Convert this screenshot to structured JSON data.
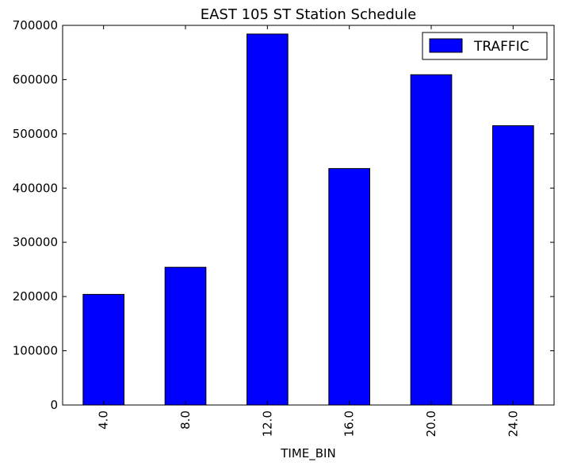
{
  "chart_data": {
    "type": "bar",
    "title": "EAST 105 ST Station Schedule",
    "xlabel": "TIME_BIN",
    "ylabel": "",
    "categories": [
      "4.0",
      "8.0",
      "12.0",
      "16.0",
      "20.0",
      "24.0"
    ],
    "series": [
      {
        "name": "TRAFFIC",
        "values": [
          204000,
          254000,
          684000,
          436000,
          609000,
          515000
        ],
        "color": "#0000ff"
      }
    ],
    "ylim": [
      0,
      700000
    ],
    "yticks": [
      0,
      100000,
      200000,
      300000,
      400000,
      500000,
      600000,
      700000
    ],
    "ytick_labels": [
      "0",
      "100000",
      "200000",
      "300000",
      "400000",
      "500000",
      "600000",
      "700000"
    ],
    "grid": false,
    "legend_position": "top-right",
    "xtick_rotation": "vertical"
  }
}
